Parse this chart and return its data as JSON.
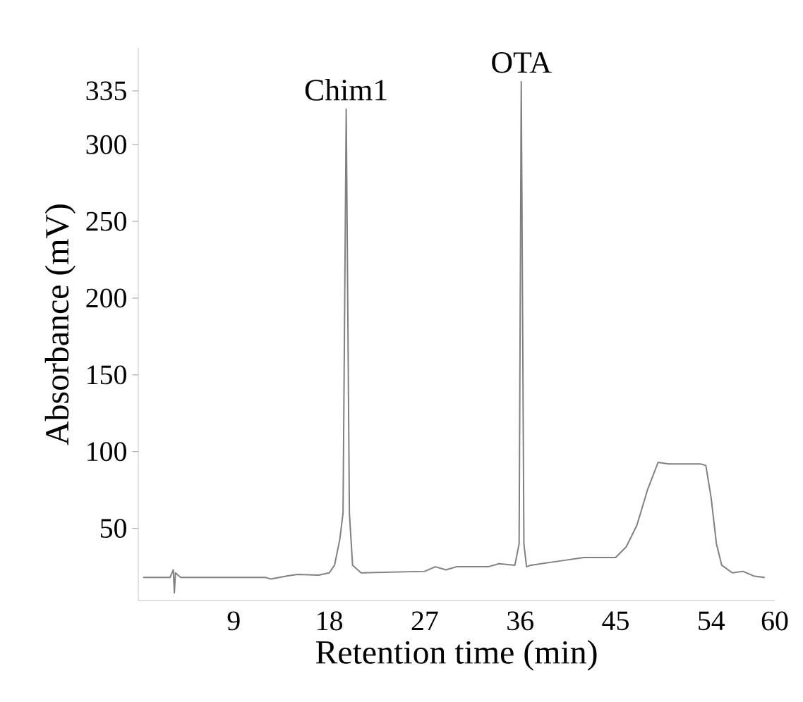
{
  "chart_data": {
    "type": "line",
    "xlabel": "Retention time (min)",
    "ylabel": "Absorbance (mV)",
    "x": [
      0.5,
      3,
      3.3,
      3.4,
      3.5,
      4,
      12,
      12.5,
      14,
      15,
      17,
      18,
      18.5,
      19,
      19.3,
      19.6,
      19.9,
      20.2,
      21,
      27,
      28,
      29,
      30,
      33,
      34,
      35.5,
      35.9,
      36.1,
      36.35,
      36.6,
      37,
      40,
      42,
      45,
      46,
      47,
      48,
      49,
      50,
      53,
      53.5,
      54,
      54.5,
      55,
      56,
      57,
      58,
      59
    ],
    "values": [
      18,
      18,
      23,
      8,
      21,
      18,
      18,
      17,
      19,
      20,
      19.5,
      21,
      26,
      43,
      60,
      323,
      60,
      26,
      21,
      22,
      25,
      23,
      25,
      25,
      27,
      26,
      40,
      341,
      40,
      25,
      26,
      29,
      31,
      31,
      38,
      52,
      75,
      93,
      92,
      92,
      91,
      70,
      40,
      26,
      21,
      22,
      19,
      18
    ],
    "color": "#808080",
    "xlim": [
      0,
      60
    ],
    "ylim": [
      3,
      363
    ],
    "xticks": [
      9,
      18,
      27,
      36,
      45,
      54,
      60
    ],
    "yticks": [
      50,
      100,
      150,
      200,
      250,
      300,
      335
    ],
    "annotations": [
      {
        "text": "Chim1",
        "x": 19.6,
        "y": 323
      },
      {
        "text": "OTA",
        "x": 36.1,
        "y": 341
      }
    ]
  }
}
